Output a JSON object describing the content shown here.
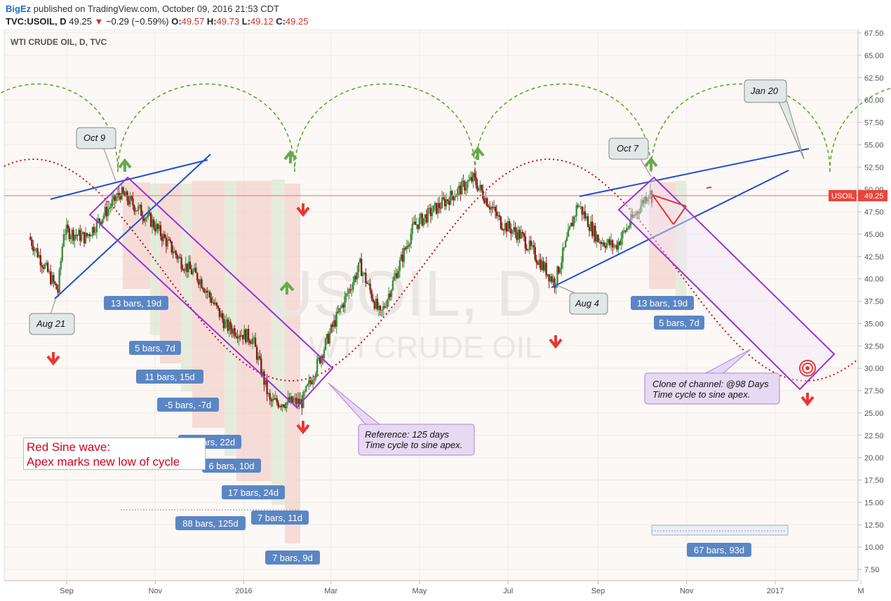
{
  "header": {
    "author": "BigEz",
    "published": "published on TradingView.com, October 09, 2016 21:53 CDT",
    "symbol": "TVC:USOIL, D",
    "price": "49.25",
    "change": "−0.29 (−0.59%)",
    "open_label": "O:",
    "open": "49.57",
    "high_label": "H:",
    "high": "49.73",
    "low_label": "L:",
    "low": "49.12",
    "close_label": "C:",
    "close": "49.25"
  },
  "chart_data": {
    "type": "candlestick",
    "title": "WTI CRUDE OIL, D, TVC",
    "watermark_symbol": "USOIL, D",
    "watermark_name": "WTI CRUDE OIL",
    "ylim": [
      5.0,
      68.0
    ],
    "y_ticks": [
      "67.50",
      "65.00",
      "62.50",
      "60.00",
      "57.50",
      "55.00",
      "52.50",
      "50.00",
      "47.50",
      "45.00",
      "42.50",
      "40.00",
      "37.50",
      "35.00",
      "32.50",
      "30.00",
      "27.50",
      "25.00",
      "22.50",
      "20.00",
      "17.50",
      "15.00",
      "12.50",
      "10.00",
      "7.50"
    ],
    "x_ticks": [
      "Sep",
      "Nov",
      "2016",
      "Mar",
      "May",
      "Jul",
      "Sep",
      "Nov",
      "2017",
      "M"
    ],
    "last_price_label": "USOIL",
    "last_price": 49.25,
    "approx_price_path": [
      [
        "2015-08-07",
        44.7
      ],
      [
        "2015-08-21",
        40.4
      ],
      [
        "2015-08-27",
        38.6
      ],
      [
        "2015-08-31",
        45.4
      ],
      [
        "2015-09-15",
        44.6
      ],
      [
        "2015-10-09",
        49.6
      ],
      [
        "2015-10-30",
        46.5
      ],
      [
        "2015-11-20",
        41.9
      ],
      [
        "2015-12-03",
        39.9
      ],
      [
        "2015-12-21",
        34.7
      ],
      [
        "2016-01-08",
        33.3
      ],
      [
        "2016-01-20",
        26.2
      ],
      [
        "2016-02-11",
        26.2
      ],
      [
        "2016-03-03",
        34.6
      ],
      [
        "2016-03-22",
        41.5
      ],
      [
        "2016-04-05",
        35.8
      ],
      [
        "2016-04-28",
        45.9
      ],
      [
        "2016-06-08",
        51.2
      ],
      [
        "2016-06-27",
        46.3
      ],
      [
        "2016-07-11",
        44.8
      ],
      [
        "2016-08-03",
        39.6
      ],
      [
        "2016-08-19",
        48.4
      ],
      [
        "2016-09-02",
        44.4
      ],
      [
        "2016-09-14",
        43.6
      ],
      [
        "2016-10-07",
        49.8
      ],
      [
        "2016-10-09",
        49.25
      ]
    ],
    "annotations": {
      "dates": [
        "Aug 21",
        "Oct 9",
        "Oct 7",
        "Aug 4",
        "Jan 20"
      ],
      "bar_counts": [
        "13 bars, 19d",
        "5 bars, 7d",
        "11 bars, 15d",
        "-5 bars, -7d",
        "16 bars, 22d",
        "6 bars, 10d",
        "17 bars, 24d",
        "88 bars, 125d",
        "7 bars, 11d",
        "7 bars, 9d",
        "13 bars, 19d",
        "5 bars, 7d",
        "67 bars, 93d"
      ],
      "reference_note": [
        "Reference: 125 days",
        "Time cycle to sine apex."
      ],
      "clone_note": [
        "Clone of channel: @98 Days",
        "Time cycle to sine apex."
      ],
      "legend_note": [
        "Red Sine wave:",
        "Apex marks new low of cycle"
      ]
    },
    "colors": {
      "up": "#3e8e3e",
      "down": "#8b1a1a",
      "sine": "#d0021b",
      "cycle_arcs": "#5aa02c",
      "trendline": "#1f4fcc",
      "channel": "#9b30d9",
      "label_bg": "#5b86c4",
      "callout_bg": "#e2e8e8",
      "note_bg": "#e6d9f2",
      "red_zone": "#f3c9c3",
      "green_zone": "#d9e4cc"
    }
  }
}
